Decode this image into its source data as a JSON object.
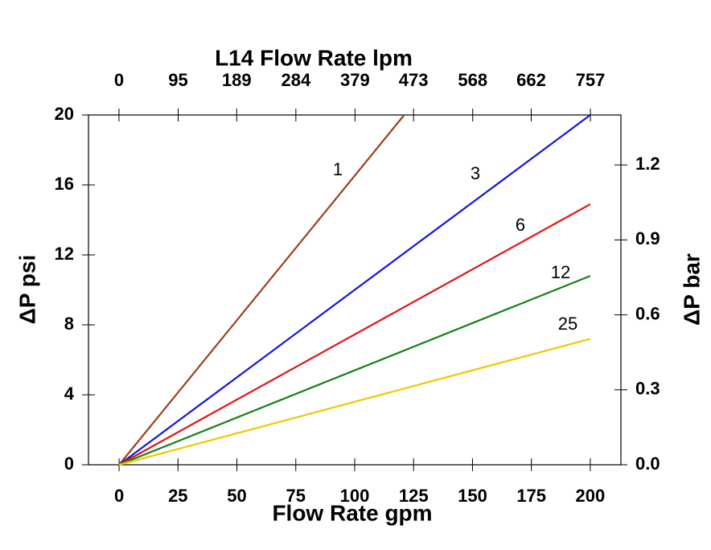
{
  "chart_data": {
    "type": "line",
    "title": "L14 Flow Rate lpm",
    "x_label": "Flow Rate gpm",
    "y_label": "ΔP psi",
    "y2_label": "ΔP bar",
    "xlim": [
      -13,
      213
    ],
    "xticks": [
      0,
      25,
      50,
      75,
      100,
      125,
      150,
      175,
      200
    ],
    "x2lim": [
      -49,
      806
    ],
    "x2ticks": [
      0,
      95,
      189,
      284,
      379,
      473,
      568,
      662,
      757
    ],
    "ylim": [
      0,
      20
    ],
    "yticks": [
      0,
      4,
      8,
      12,
      16,
      20
    ],
    "y2lim": [
      0,
      1.4
    ],
    "y2ticks": [
      {
        "value": 0,
        "label": "0.0"
      },
      {
        "value": 0.3,
        "label": "0.3"
      },
      {
        "value": 0.6,
        "label": "0.6"
      },
      {
        "value": 0.9,
        "label": "0.9"
      },
      {
        "value": 1.2,
        "label": "1.2"
      }
    ],
    "series": [
      {
        "name": "1",
        "color": "#a0401a",
        "x": [
          0,
          121
        ],
        "values": [
          0,
          20
        ]
      },
      {
        "name": "3",
        "color": "#1414e0",
        "x": [
          0,
          200
        ],
        "values": [
          0,
          20
        ]
      },
      {
        "name": "6",
        "color": "#e01414",
        "x": [
          0,
          200
        ],
        "values": [
          0,
          14.9
        ]
      },
      {
        "name": "12",
        "color": "#148014",
        "x": [
          0,
          200
        ],
        "values": [
          0,
          10.8
        ]
      },
      {
        "name": "25",
        "color": "#f0c800",
        "x": [
          0,
          200
        ],
        "values": [
          0,
          7.2
        ]
      }
    ]
  }
}
